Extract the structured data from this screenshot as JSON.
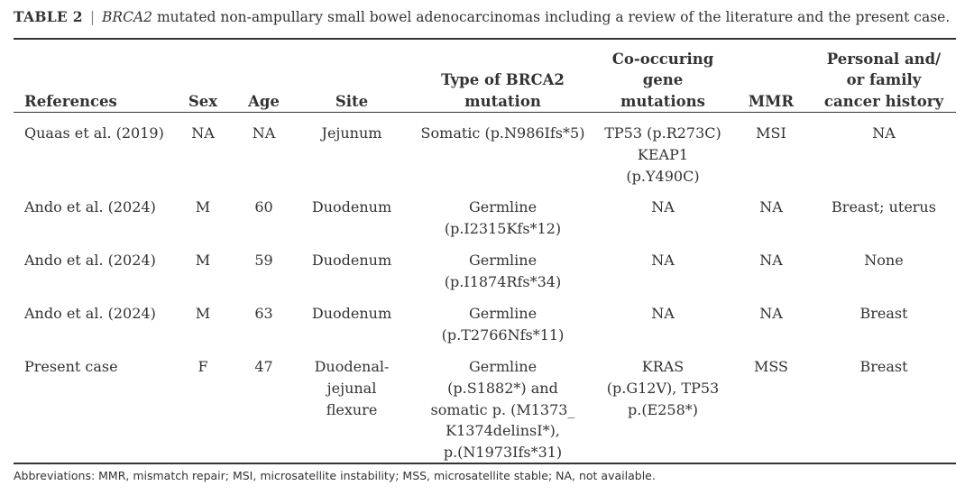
{
  "caption": {
    "label": "TABLE 2",
    "separator": "|",
    "gene": "BRCA2",
    "text": " mutated non-ampullary small bowel adenocarcinomas including a review of the literature and the present case."
  },
  "columns": [
    "References",
    "Sex",
    "Age",
    "Site",
    "Type of BRCA2\nmutation",
    "Co-occuring\ngene\nmutations",
    "MMR",
    "Personal and/\nor family\ncancer history"
  ],
  "rows": [
    [
      "Quaas et al. (2019)",
      "NA",
      "NA",
      "Jejunum",
      "Somatic (p.N986Ifs*5)",
      "TP53 (p.R273C)\nKEAP1\n(p.Y490C)",
      "MSI",
      "NA"
    ],
    [
      "Ando et al. (2024)",
      "M",
      "60",
      "Duodenum",
      "Germline\n(p.I2315Kfs*12)",
      "NA",
      "NA",
      "Breast; uterus"
    ],
    [
      "Ando et al. (2024)",
      "M",
      "59",
      "Duodenum",
      "Germline\n(p.I1874Rfs*34)",
      "NA",
      "NA",
      "None"
    ],
    [
      "Ando et al. (2024)",
      "M",
      "63",
      "Duodenum",
      "Germline\n(p.T2766Nfs*11)",
      "NA",
      "NA",
      "Breast"
    ],
    [
      "Present case",
      "F",
      "47",
      "Duodenal-\njejunal\nflexure",
      "Germline\n(p.S1882*) and\nsomatic p. (M1373_\nK1374delinsI*),\np.(N1973Ifs*31)",
      "KRAS\n(p.G12V), TP53\np.(E258*)",
      "MSS",
      "Breast"
    ]
  ],
  "footnote": "Abbreviations: MMR, mismatch repair; MSI, microsatellite instability; MSS, microsatellite stable; NA, not available."
}
